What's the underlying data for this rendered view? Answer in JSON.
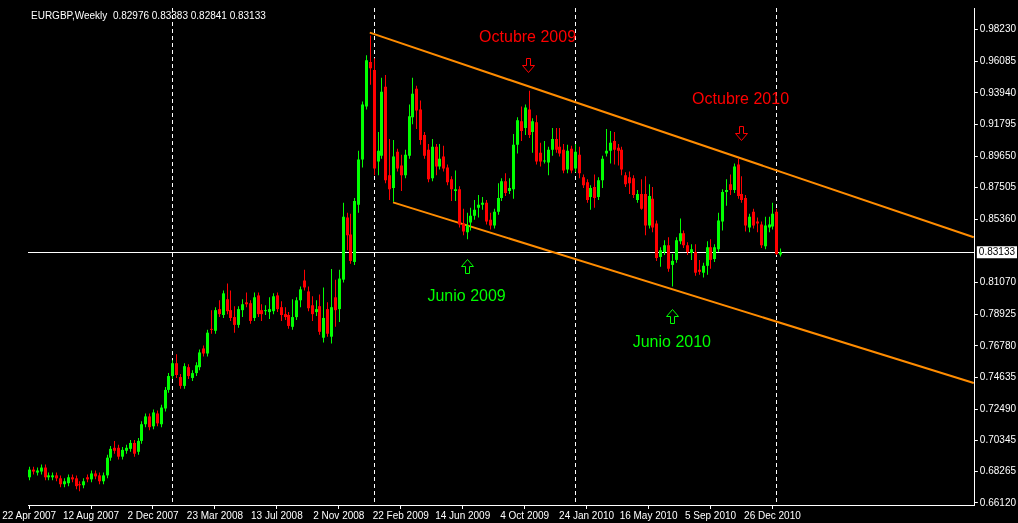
{
  "chart_data": {
    "type": "candlestick",
    "title": "EURGBP,Weekly  0.82976 0.83383 0.82841 0.83133",
    "x": [
      "2007-04-22",
      "2007-04-29",
      "2007-05-06",
      "2007-05-13",
      "2007-05-20",
      "2007-05-27",
      "2007-06-03",
      "2007-06-10",
      "2007-06-17",
      "2007-06-24",
      "2007-07-01",
      "2007-07-08",
      "2007-07-15",
      "2007-07-22",
      "2007-07-29",
      "2007-08-05",
      "2007-08-12",
      "2007-08-19",
      "2007-08-26",
      "2007-09-02",
      "2007-09-09",
      "2007-09-16",
      "2007-09-23",
      "2007-09-30",
      "2007-10-07",
      "2007-10-14",
      "2007-10-21",
      "2007-10-28",
      "2007-11-04",
      "2007-11-11",
      "2007-11-18",
      "2007-11-25",
      "2007-12-02",
      "2007-12-09",
      "2007-12-16",
      "2007-12-23",
      "2007-12-30",
      "2008-01-06",
      "2008-01-13",
      "2008-01-20",
      "2008-01-27",
      "2008-02-03",
      "2008-02-10",
      "2008-02-17",
      "2008-02-24",
      "2008-03-02",
      "2008-03-09",
      "2008-03-16",
      "2008-03-23",
      "2008-03-30",
      "2008-04-06",
      "2008-04-13",
      "2008-04-20",
      "2008-04-27",
      "2008-05-04",
      "2008-05-11",
      "2008-05-18",
      "2008-05-25",
      "2008-06-01",
      "2008-06-08",
      "2008-06-15",
      "2008-06-22",
      "2008-06-29",
      "2008-07-06",
      "2008-07-13",
      "2008-07-20",
      "2008-07-27",
      "2008-08-03",
      "2008-08-10",
      "2008-08-17",
      "2008-08-24",
      "2008-08-31",
      "2008-09-07",
      "2008-09-14",
      "2008-09-21",
      "2008-09-28",
      "2008-10-05",
      "2008-10-12",
      "2008-10-19",
      "2008-10-26",
      "2008-11-02",
      "2008-11-09",
      "2008-11-16",
      "2008-11-23",
      "2008-11-30",
      "2008-12-07",
      "2008-12-14",
      "2008-12-21",
      "2008-12-28",
      "2009-01-04",
      "2009-01-11",
      "2009-01-18",
      "2009-01-25",
      "2009-02-01",
      "2009-02-08",
      "2009-02-15",
      "2009-02-22",
      "2009-03-01",
      "2009-03-08",
      "2009-03-15",
      "2009-03-22",
      "2009-03-29",
      "2009-04-05",
      "2009-04-12",
      "2009-04-19",
      "2009-04-26",
      "2009-05-03",
      "2009-05-10",
      "2009-05-17",
      "2009-05-24",
      "2009-05-31",
      "2009-06-07",
      "2009-06-14",
      "2009-06-21",
      "2009-06-28",
      "2009-07-05",
      "2009-07-12",
      "2009-07-19",
      "2009-07-26",
      "2009-08-02",
      "2009-08-09",
      "2009-08-16",
      "2009-08-23",
      "2009-08-30",
      "2009-09-06",
      "2009-09-13",
      "2009-09-20",
      "2009-09-27",
      "2009-10-04",
      "2009-10-11",
      "2009-10-18",
      "2009-10-25",
      "2009-11-01",
      "2009-11-08",
      "2009-11-15",
      "2009-11-22",
      "2009-11-29",
      "2009-12-06",
      "2009-12-13",
      "2009-12-20",
      "2009-12-27",
      "2010-01-03",
      "2010-01-10",
      "2010-01-17",
      "2010-01-24",
      "2010-01-31",
      "2010-02-07",
      "2010-02-14",
      "2010-02-21",
      "2010-02-28",
      "2010-03-07",
      "2010-03-14",
      "2010-03-21",
      "2010-03-28",
      "2010-04-04",
      "2010-04-11",
      "2010-04-18",
      "2010-04-25",
      "2010-05-02",
      "2010-05-09",
      "2010-05-16",
      "2010-05-23",
      "2010-05-30",
      "2010-06-06",
      "2010-06-13",
      "2010-06-20",
      "2010-06-27",
      "2010-07-04",
      "2010-07-11",
      "2010-07-18",
      "2010-07-25",
      "2010-08-01",
      "2010-08-08",
      "2010-08-15",
      "2010-08-22",
      "2010-08-29",
      "2010-09-05",
      "2010-09-12",
      "2010-09-19",
      "2010-09-26",
      "2010-10-03",
      "2010-10-10",
      "2010-10-17",
      "2010-10-24",
      "2010-10-31",
      "2010-11-07",
      "2010-11-14",
      "2010-11-21",
      "2010-11-28",
      "2010-12-05",
      "2010-12-12",
      "2010-12-19",
      "2010-12-26",
      "2011-01-02",
      "2011-01-09"
    ],
    "ohlc": [
      [
        0.6786,
        0.6858,
        0.6766,
        0.6838
      ],
      [
        0.6838,
        0.6858,
        0.6805,
        0.6825
      ],
      [
        0.6818,
        0.6852,
        0.6799,
        0.6832
      ],
      [
        0.6825,
        0.6872,
        0.6805,
        0.6852
      ],
      [
        0.6852,
        0.6872,
        0.6766,
        0.6786
      ],
      [
        0.6786,
        0.6818,
        0.6766,
        0.6799
      ],
      [
        0.6786,
        0.6818,
        0.6766,
        0.6799
      ],
      [
        0.6799,
        0.6818,
        0.6759,
        0.6779
      ],
      [
        0.6779,
        0.6799,
        0.6719,
        0.6739
      ],
      [
        0.6739,
        0.6779,
        0.6719,
        0.6759
      ],
      [
        0.6746,
        0.6805,
        0.6726,
        0.6786
      ],
      [
        0.6786,
        0.6805,
        0.6752,
        0.6772
      ],
      [
        0.6779,
        0.6799,
        0.6705,
        0.6726
      ],
      [
        0.6739,
        0.6759,
        0.6692,
        0.6732
      ],
      [
        0.6732,
        0.6779,
        0.6712,
        0.6759
      ],
      [
        0.6786,
        0.6805,
        0.6752,
        0.6772
      ],
      [
        0.6772,
        0.6832,
        0.6752,
        0.6812
      ],
      [
        0.6812,
        0.6832,
        0.6772,
        0.6792
      ],
      [
        0.6799,
        0.6818,
        0.6739,
        0.6759
      ],
      [
        0.6759,
        0.6818,
        0.6739,
        0.6799
      ],
      [
        0.6799,
        0.6939,
        0.6779,
        0.6919
      ],
      [
        0.6919,
        0.6999,
        0.6899,
        0.6979
      ],
      [
        0.6986,
        0.7033,
        0.6946,
        0.6966
      ],
      [
        0.6986,
        0.7006,
        0.6906,
        0.6926
      ],
      [
        0.6926,
        0.6992,
        0.6906,
        0.6972
      ],
      [
        0.6966,
        0.7006,
        0.6946,
        0.6986
      ],
      [
        0.6979,
        0.7039,
        0.6959,
        0.7019
      ],
      [
        0.7019,
        0.7039,
        0.6926,
        0.6946
      ],
      [
        0.6959,
        0.7053,
        0.6939,
        0.7033
      ],
      [
        0.7033,
        0.7166,
        0.7013,
        0.7146
      ],
      [
        0.7146,
        0.7219,
        0.7126,
        0.7199
      ],
      [
        0.7199,
        0.7219,
        0.7106,
        0.7126
      ],
      [
        0.7132,
        0.7246,
        0.7112,
        0.7226
      ],
      [
        0.7219,
        0.7239,
        0.7132,
        0.7152
      ],
      [
        0.7146,
        0.7279,
        0.7126,
        0.7259
      ],
      [
        0.7253,
        0.7399,
        0.7233,
        0.7379
      ],
      [
        0.7379,
        0.7493,
        0.7359,
        0.7473
      ],
      [
        0.7473,
        0.758,
        0.7453,
        0.756
      ],
      [
        0.756,
        0.762,
        0.746,
        0.748
      ],
      [
        0.7466,
        0.7486,
        0.7386,
        0.7406
      ],
      [
        0.7406,
        0.756,
        0.7386,
        0.754
      ],
      [
        0.7533,
        0.7553,
        0.7453,
        0.7473
      ],
      [
        0.746,
        0.7513,
        0.7439,
        0.7493
      ],
      [
        0.7493,
        0.7566,
        0.7473,
        0.7546
      ],
      [
        0.7533,
        0.7653,
        0.7513,
        0.7633
      ],
      [
        0.766,
        0.768,
        0.7606,
        0.7626
      ],
      [
        0.7626,
        0.7787,
        0.7606,
        0.7767
      ],
      [
        0.7793,
        0.792,
        0.776,
        0.7793
      ],
      [
        0.778,
        0.794,
        0.776,
        0.792
      ],
      [
        0.7927,
        0.7987,
        0.7873,
        0.7893
      ],
      [
        0.7887,
        0.8054,
        0.7867,
        0.8034
      ],
      [
        0.7994,
        0.8101,
        0.7893,
        0.7913
      ],
      [
        0.792,
        0.8054,
        0.7847,
        0.7867
      ],
      [
        0.7873,
        0.7947,
        0.7767,
        0.782
      ],
      [
        0.782,
        0.7947,
        0.78,
        0.7927
      ],
      [
        0.792,
        0.7994,
        0.7873,
        0.796
      ],
      [
        0.7973,
        0.804,
        0.794,
        0.796
      ],
      [
        0.7967,
        0.7987,
        0.7827,
        0.7847
      ],
      [
        0.7867,
        0.804,
        0.7847,
        0.8007
      ],
      [
        0.802,
        0.804,
        0.7873,
        0.7893
      ],
      [
        0.792,
        0.796,
        0.7847,
        0.7893
      ],
      [
        0.792,
        0.7953,
        0.7887,
        0.792
      ],
      [
        0.7907,
        0.8007,
        0.786,
        0.7927
      ],
      [
        0.7913,
        0.8034,
        0.7893,
        0.8014
      ],
      [
        0.802,
        0.804,
        0.7907,
        0.7927
      ],
      [
        0.794,
        0.798,
        0.7847,
        0.7887
      ],
      [
        0.7893,
        0.794,
        0.7853,
        0.7873
      ],
      [
        0.7887,
        0.7907,
        0.7793,
        0.7813
      ],
      [
        0.7807,
        0.7994,
        0.7787,
        0.7873
      ],
      [
        0.7873,
        0.8007,
        0.7853,
        0.7987
      ],
      [
        0.7987,
        0.8081,
        0.794,
        0.8061
      ],
      [
        0.8121,
        0.8194,
        0.8054,
        0.8074
      ],
      [
        0.8047,
        0.8081,
        0.7913,
        0.7933
      ],
      [
        0.7953,
        0.8014,
        0.7847,
        0.7893
      ],
      [
        0.7907,
        0.7987,
        0.788,
        0.7927
      ],
      [
        0.7947,
        0.8027,
        0.7753,
        0.7773
      ],
      [
        0.7733,
        0.8074,
        0.77,
        0.7867
      ],
      [
        0.7927,
        0.7973,
        0.774,
        0.776
      ],
      [
        0.774,
        0.82,
        0.7693,
        0.794
      ],
      [
        0.8007,
        0.8127,
        0.7807,
        0.792
      ],
      [
        0.7927,
        0.8194,
        0.784,
        0.8134
      ],
      [
        0.8127,
        0.8648,
        0.8107,
        0.8554
      ],
      [
        0.8548,
        0.8581,
        0.8327,
        0.8428
      ],
      [
        0.8434,
        0.8574,
        0.8234,
        0.8254
      ],
      [
        0.8247,
        0.8681,
        0.8227,
        0.8661
      ],
      [
        0.8635,
        0.9002,
        0.8581,
        0.8942
      ],
      [
        0.8942,
        0.9335,
        0.8888,
        0.9315
      ],
      [
        0.9302,
        0.9649,
        0.9282,
        0.9616
      ],
      [
        0.9603,
        0.9783,
        0.9449,
        0.9562
      ],
      [
        0.9549,
        0.9629,
        0.8835,
        0.8881
      ],
      [
        0.8928,
        0.9128,
        0.8835,
        0.9002
      ],
      [
        0.8968,
        0.9496,
        0.8948,
        0.9402
      ],
      [
        0.9436,
        0.9516,
        0.8781,
        0.8801
      ],
      [
        0.8835,
        0.9082,
        0.8668,
        0.8741
      ],
      [
        0.8748,
        0.9075,
        0.8655,
        0.8962
      ],
      [
        0.8995,
        0.9015,
        0.8861,
        0.8881
      ],
      [
        0.8901,
        0.8975,
        0.8728,
        0.8835
      ],
      [
        0.8835,
        0.9008,
        0.8815,
        0.8975
      ],
      [
        0.8968,
        0.9315,
        0.8948,
        0.9235
      ],
      [
        0.9229,
        0.9496,
        0.9182,
        0.9389
      ],
      [
        0.9422,
        0.9442,
        0.9149,
        0.9275
      ],
      [
        0.9282,
        0.9342,
        0.9042,
        0.9075
      ],
      [
        0.9108,
        0.9128,
        0.8948,
        0.8968
      ],
      [
        0.9008,
        0.9048,
        0.8788,
        0.8808
      ],
      [
        0.8815,
        0.9082,
        0.8795,
        0.9028
      ],
      [
        0.9028,
        0.9048,
        0.8835,
        0.8895
      ],
      [
        0.8895,
        0.9048,
        0.8875,
        0.8948
      ],
      [
        0.8962,
        0.9035,
        0.8861,
        0.8881
      ],
      [
        0.8888,
        0.8908,
        0.8768,
        0.8788
      ],
      [
        0.8808,
        0.8828,
        0.8661,
        0.8741
      ],
      [
        0.8728,
        0.8868,
        0.8661,
        0.8741
      ],
      [
        0.8741,
        0.8761,
        0.8481,
        0.8501
      ],
      [
        0.8508,
        0.8608,
        0.8428,
        0.8454
      ],
      [
        0.8448,
        0.8581,
        0.8401,
        0.8494
      ],
      [
        0.8514,
        0.8614,
        0.8461,
        0.8561
      ],
      [
        0.8561,
        0.8668,
        0.8534,
        0.8601
      ],
      [
        0.8614,
        0.8701,
        0.8548,
        0.8635
      ],
      [
        0.8635,
        0.8688,
        0.8601,
        0.8648
      ],
      [
        0.8648,
        0.8668,
        0.8501,
        0.8521
      ],
      [
        0.8534,
        0.8581,
        0.8468,
        0.8494
      ],
      [
        0.8494,
        0.8608,
        0.8474,
        0.8588
      ],
      [
        0.8588,
        0.8781,
        0.8568,
        0.8681
      ],
      [
        0.8681,
        0.8815,
        0.8661,
        0.8795
      ],
      [
        0.8795,
        0.8848,
        0.8695,
        0.8715
      ],
      [
        0.8728,
        0.8815,
        0.8708,
        0.8748
      ],
      [
        0.8741,
        0.9115,
        0.8675,
        0.9042
      ],
      [
        0.9042,
        0.9229,
        0.8982,
        0.9209
      ],
      [
        0.9202,
        0.9302,
        0.9068,
        0.9135
      ],
      [
        0.9155,
        0.9315,
        0.9108,
        0.9295
      ],
      [
        0.9282,
        0.9409,
        0.9088,
        0.9108
      ],
      [
        0.9128,
        0.9222,
        0.8988,
        0.9202
      ],
      [
        0.9195,
        0.9242,
        0.8908,
        0.8928
      ],
      [
        0.8988,
        0.9055,
        0.8895,
        0.8928
      ],
      [
        0.8935,
        0.9068,
        0.8915,
        0.8935
      ],
      [
        0.8922,
        0.9028,
        0.8835,
        0.9008
      ],
      [
        0.9008,
        0.9155,
        0.8968,
        0.9082
      ],
      [
        0.9082,
        0.9155,
        0.8988,
        0.9008
      ],
      [
        0.9028,
        0.9155,
        0.8962,
        0.8982
      ],
      [
        0.9008,
        0.9048,
        0.8848,
        0.8868
      ],
      [
        0.8875,
        0.9042,
        0.8848,
        0.9002
      ],
      [
        0.9015,
        0.9035,
        0.8848,
        0.8868
      ],
      [
        0.8881,
        0.9048,
        0.8855,
        0.8995
      ],
      [
        0.8975,
        0.9028,
        0.8815,
        0.8848
      ],
      [
        0.8821,
        0.8841,
        0.8748,
        0.8768
      ],
      [
        0.8788,
        0.8808,
        0.8648,
        0.8668
      ],
      [
        0.8688,
        0.8768,
        0.8601,
        0.8748
      ],
      [
        0.8755,
        0.8841,
        0.8614,
        0.8681
      ],
      [
        0.8688,
        0.8821,
        0.8668,
        0.8801
      ],
      [
        0.8801,
        0.8968,
        0.8748,
        0.8948
      ],
      [
        0.8982,
        0.9149,
        0.8962,
        0.9002
      ],
      [
        0.9002,
        0.9135,
        0.8915,
        0.9055
      ],
      [
        0.9068,
        0.9128,
        0.8908,
        0.9008
      ],
      [
        0.9022,
        0.9048,
        0.8901,
        0.9002
      ],
      [
        0.9008,
        0.9028,
        0.8835,
        0.8875
      ],
      [
        0.8835,
        0.8855,
        0.8755,
        0.8775
      ],
      [
        0.8821,
        0.8861,
        0.8708,
        0.8781
      ],
      [
        0.8815,
        0.8835,
        0.8681,
        0.8701
      ],
      [
        0.8668,
        0.8735,
        0.8648,
        0.8708
      ],
      [
        0.8708,
        0.8808,
        0.8601,
        0.8608
      ],
      [
        0.8708,
        0.8828,
        0.8428,
        0.8494
      ],
      [
        0.8494,
        0.8775,
        0.8474,
        0.8695
      ],
      [
        0.8675,
        0.8755,
        0.8448,
        0.8481
      ],
      [
        0.8508,
        0.8528,
        0.8254,
        0.8274
      ],
      [
        0.8281,
        0.8347,
        0.8214,
        0.8327
      ],
      [
        0.8314,
        0.8394,
        0.8294,
        0.8361
      ],
      [
        0.8361,
        0.8414,
        0.818,
        0.8201
      ],
      [
        0.8227,
        0.8301,
        0.8081,
        0.8254
      ],
      [
        0.8261,
        0.8414,
        0.8241,
        0.8394
      ],
      [
        0.8387,
        0.8541,
        0.8367,
        0.8441
      ],
      [
        0.8441,
        0.8461,
        0.8341,
        0.8361
      ],
      [
        0.8361,
        0.8381,
        0.8294,
        0.8314
      ],
      [
        0.8307,
        0.8367,
        0.8261,
        0.8334
      ],
      [
        0.8314,
        0.8367,
        0.8154,
        0.8174
      ],
      [
        0.8194,
        0.8261,
        0.816,
        0.818
      ],
      [
        0.8174,
        0.8241,
        0.8141,
        0.8221
      ],
      [
        0.8221,
        0.8387,
        0.816,
        0.8347
      ],
      [
        0.8347,
        0.8401,
        0.8201,
        0.8261
      ],
      [
        0.8267,
        0.8367,
        0.8247,
        0.8347
      ],
      [
        0.8334,
        0.8581,
        0.8314,
        0.8528
      ],
      [
        0.8521,
        0.8741,
        0.8461,
        0.8721
      ],
      [
        0.8721,
        0.8808,
        0.8628,
        0.8735
      ],
      [
        0.8775,
        0.8841,
        0.8701,
        0.8735
      ],
      [
        0.8735,
        0.8915,
        0.8715,
        0.8895
      ],
      [
        0.8908,
        0.8948,
        0.8675,
        0.8695
      ],
      [
        0.8708,
        0.8828,
        0.8648,
        0.8668
      ],
      [
        0.8681,
        0.8701,
        0.8454,
        0.8494
      ],
      [
        0.8481,
        0.8574,
        0.8448,
        0.8554
      ],
      [
        0.8588,
        0.8608,
        0.8474,
        0.8494
      ],
      [
        0.8521,
        0.8548,
        0.8448,
        0.8508
      ],
      [
        0.8501,
        0.8521,
        0.8341,
        0.8361
      ],
      [
        0.8354,
        0.8554,
        0.8334,
        0.8494
      ],
      [
        0.8481,
        0.8554,
        0.8448,
        0.8501
      ],
      [
        0.8488,
        0.8648,
        0.8468,
        0.8574
      ],
      [
        0.8588,
        0.8608,
        0.8294,
        0.8301
      ],
      [
        0.82976,
        0.83383,
        0.82841,
        0.83133
      ]
    ],
    "colors": [
      "#00ff00",
      "#ff0000",
      "#00ff00",
      "#00ff00",
      "#ff0000",
      "#00ff00",
      "#00ff00",
      "#ff0000",
      "#ff0000",
      "#00ff00",
      "#00ff00",
      "#ff0000",
      "#ff0000",
      "#ff0000",
      "#00ff00",
      "#ff0000",
      "#00ff00",
      "#ff0000",
      "#ff0000",
      "#00ff00",
      "#00ff00",
      "#00ff00",
      "#ff0000",
      "#ff0000",
      "#00ff00",
      "#00ff00",
      "#00ff00",
      "#ff0000",
      "#00ff00",
      "#00ff00",
      "#00ff00",
      "#ff0000",
      "#00ff00",
      "#ff0000",
      "#00ff00",
      "#00ff00",
      "#00ff00",
      "#00ff00",
      "#ff0000",
      "#ff0000",
      "#00ff00",
      "#ff0000",
      "#00ff00",
      "#00ff00",
      "#00ff00",
      "#ff0000",
      "#00ff00",
      "#ff0000",
      "#00ff00",
      "#ff0000",
      "#00ff00",
      "#ff0000",
      "#ff0000",
      "#ff0000",
      "#00ff00",
      "#00ff00",
      "#ff0000",
      "#ff0000",
      "#00ff00",
      "#ff0000",
      "#ff0000",
      "#00ff00",
      "#00ff00",
      "#00ff00",
      "#ff0000",
      "#ff0000",
      "#ff0000",
      "#ff0000",
      "#00ff00",
      "#00ff00",
      "#00ff00",
      "#ff0000",
      "#ff0000",
      "#ff0000",
      "#00ff00",
      "#ff0000",
      "#00ff00",
      "#ff0000",
      "#00ff00",
      "#ff0000",
      "#00ff00",
      "#00ff00",
      "#ff0000",
      "#ff0000",
      "#00ff00",
      "#00ff00",
      "#00ff00",
      "#00ff00",
      "#ff0000",
      "#ff0000",
      "#00ff00",
      "#00ff00",
      "#ff0000",
      "#ff0000",
      "#00ff00",
      "#ff0000",
      "#ff0000",
      "#00ff00",
      "#00ff00",
      "#00ff00",
      "#ff0000",
      "#ff0000",
      "#ff0000",
      "#ff0000",
      "#00ff00",
      "#ff0000",
      "#00ff00",
      "#ff0000",
      "#ff0000",
      "#ff0000",
      "#00ff00",
      "#ff0000",
      "#ff0000",
      "#00ff00",
      "#00ff00",
      "#00ff00",
      "#00ff00",
      "#00ff00",
      "#ff0000",
      "#ff0000",
      "#00ff00",
      "#00ff00",
      "#00ff00",
      "#ff0000",
      "#00ff00",
      "#00ff00",
      "#00ff00",
      "#ff0000",
      "#00ff00",
      "#ff0000",
      "#00ff00",
      "#ff0000",
      "#ff0000",
      "#00ff00",
      "#00ff00",
      "#00ff00",
      "#ff0000",
      "#ff0000",
      "#ff0000",
      "#00ff00",
      "#ff0000",
      "#00ff00",
      "#ff0000",
      "#ff0000",
      "#ff0000",
      "#00ff00",
      "#ff0000",
      "#00ff00",
      "#00ff00",
      "#00ff00",
      "#00ff00",
      "#ff0000",
      "#ff0000",
      "#ff0000",
      "#ff0000",
      "#ff0000",
      "#ff0000",
      "#00ff00",
      "#ff0000",
      "#ff0000",
      "#00ff00",
      "#ff0000",
      "#ff0000",
      "#00ff00",
      "#00ff00",
      "#ff0000",
      "#00ff00",
      "#00ff00",
      "#00ff00",
      "#ff0000",
      "#ff0000",
      "#00ff00",
      "#ff0000",
      "#ff0000",
      "#00ff00",
      "#00ff00",
      "#ff0000",
      "#00ff00",
      "#00ff00",
      "#00ff00",
      "#00ff00",
      "#ff0000",
      "#00ff00",
      "#ff0000",
      "#ff0000",
      "#ff0000",
      "#00ff00",
      "#ff0000",
      "#ff0000",
      "#ff0000",
      "#00ff00",
      "#00ff00",
      "#00ff00",
      "#ff0000",
      "#00ff00"
    ],
    "series": [
      {
        "type": "line",
        "color": "#ff8c00",
        "x": [
          "2008-12-28",
          "2011-12-25"
        ],
        "values": [
          0.9803,
          0.8415
        ]
      },
      {
        "type": "line",
        "color": "#ff8c00",
        "x": [
          "2009-02-08",
          "2011-12-25"
        ],
        "values": [
          0.8651,
          0.7426
        ]
      }
    ],
    "xlim": [
      "2007-04-20",
      "2011-12-27"
    ],
    "xticks": [
      {
        "value": "2007-04-22",
        "label": "22 Apr 2007"
      },
      {
        "value": "2007-08-12",
        "label": "12 Aug 2007"
      },
      {
        "value": "2007-12-02",
        "label": "2 Dec 2007"
      },
      {
        "value": "2008-03-23",
        "label": "23 Mar 2008"
      },
      {
        "value": "2008-07-13",
        "label": "13 Jul 2008"
      },
      {
        "value": "2008-11-02",
        "label": "2 Nov 2008"
      },
      {
        "value": "2009-02-22",
        "label": "22 Feb 2009"
      },
      {
        "value": "2009-06-14",
        "label": "14 Jun 2009"
      },
      {
        "value": "2009-10-04",
        "label": "4 Oct 2009"
      },
      {
        "value": "2010-01-24",
        "label": "24 Jan 2010"
      },
      {
        "value": "2010-05-16",
        "label": "16 May 2010"
      },
      {
        "value": "2010-09-05",
        "label": "5 Sep 2010"
      },
      {
        "value": "2010-12-26",
        "label": "26 Dec 2010"
      }
    ],
    "ylim": [
      0.6598,
      0.997
    ],
    "yticks": [
      {
        "value": 0.9823,
        "label": "0.98230"
      },
      {
        "value": 0.96085,
        "label": "0.96085"
      },
      {
        "value": 0.9394,
        "label": "0.93940"
      },
      {
        "value": 0.91795,
        "label": "0.91795"
      },
      {
        "value": 0.8965,
        "label": "0.89650"
      },
      {
        "value": 0.87505,
        "label": "0.87505"
      },
      {
        "value": 0.8536,
        "label": "0.85360"
      },
      {
        "value": 0.8107,
        "label": "0.81070"
      },
      {
        "value": 0.78925,
        "label": "0.78925"
      },
      {
        "value": 0.7678,
        "label": "0.76780"
      },
      {
        "value": 0.74635,
        "label": "0.74635"
      },
      {
        "value": 0.7249,
        "label": "0.72490"
      },
      {
        "value": 0.70345,
        "label": "0.70345"
      },
      {
        "value": 0.68265,
        "label": "0.68265"
      },
      {
        "value": 0.6612,
        "label": "0.66120"
      }
    ],
    "ref_lines": [
      {
        "axis": "y",
        "value": 0.83133,
        "label": "0.83133",
        "color": "#ffffff"
      },
      {
        "axis": "x",
        "value": "2008-01-06",
        "label": null,
        "color": "#ffffff",
        "line_style": "dashed"
      },
      {
        "axis": "x",
        "value": "2009-01-04",
        "label": null,
        "color": "#ffffff",
        "line_style": "dashed"
      },
      {
        "axis": "x",
        "value": "2010-01-03",
        "label": null,
        "color": "#ffffff",
        "line_style": "dashed"
      },
      {
        "axis": "x",
        "value": "2011-01-02",
        "label": null,
        "color": "#ffffff",
        "line_style": "dashed"
      }
    ],
    "annotations": [
      "Octubre 2009",
      "Octubre 2010",
      "Junio 2009",
      "Junio 2010"
    ],
    "grid": false,
    "legend": false
  }
}
